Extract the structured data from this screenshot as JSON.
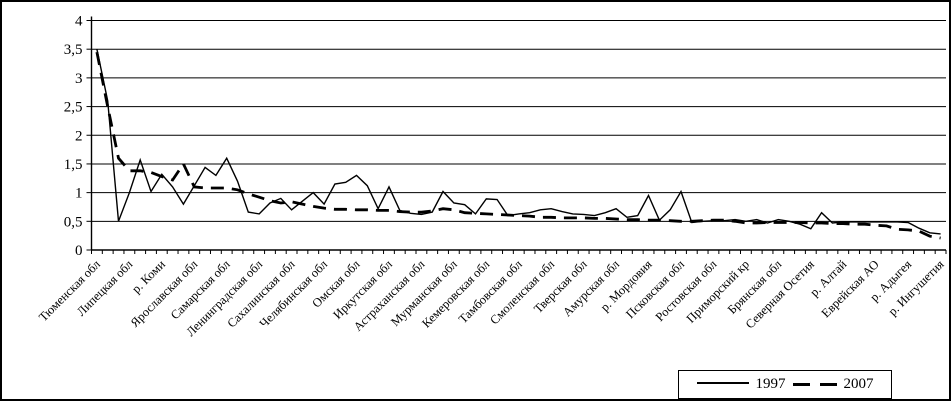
{
  "chart_data": {
    "type": "line",
    "title": "",
    "xlabel": "",
    "ylabel": "",
    "ylim": [
      0,
      4
    ],
    "ytick_values": [
      0,
      0.5,
      1,
      1.5,
      2,
      2.5,
      3,
      3.5,
      4
    ],
    "ytick_labels": [
      "0",
      "0,5",
      "1",
      "1,5",
      "2",
      "2,5",
      "3",
      "3,5",
      "4"
    ],
    "grid": "horizontal",
    "legend_position": "bottom-right",
    "line_color": "#000000",
    "n_points": 79,
    "label_every": 3,
    "categories": [
      "Тюменская обл",
      "Липецкая обл",
      "р. Коми",
      "Ярославская обл",
      "Самарская обл",
      "Ленинградская обл",
      "Сахалинская обл",
      "Челябинская обл",
      "Омская обл",
      "Иркутская обл",
      "Астраханская обл",
      "Мурманская обл",
      "Кемеровская обл",
      "Тамбовская обл",
      "Смоленская обл",
      "Тверская обл",
      "Амурская обл",
      "р. Мордовия",
      "Псковская обл",
      "Ростовская обл",
      "Приморский кр",
      "Брянская обл",
      "Северная Осетия",
      "р. Алтай",
      "Еврейская АО",
      "р. Адыгея",
      "р. Ингушетия"
    ],
    "series": [
      {
        "name": "1997",
        "style": "solid",
        "values": [
          3.5,
          2.6,
          0.5,
          1.0,
          1.57,
          1.02,
          1.32,
          1.1,
          0.8,
          1.12,
          1.44,
          1.3,
          1.6,
          1.2,
          0.66,
          0.63,
          0.82,
          0.9,
          0.7,
          0.85,
          1.0,
          0.8,
          1.15,
          1.18,
          1.3,
          1.12,
          0.72,
          1.1,
          0.69,
          0.64,
          0.62,
          0.66,
          1.02,
          0.82,
          0.79,
          0.63,
          0.89,
          0.88,
          0.6,
          0.63,
          0.65,
          0.7,
          0.72,
          0.67,
          0.63,
          0.62,
          0.6,
          0.65,
          0.72,
          0.57,
          0.6,
          0.95,
          0.52,
          0.7,
          1.02,
          0.48,
          0.5,
          0.51,
          0.51,
          0.53,
          0.5,
          0.53,
          0.47,
          0.53,
          0.5,
          0.45,
          0.37,
          0.65,
          0.47,
          0.49,
          0.49,
          0.49,
          0.49,
          0.49,
          0.49,
          0.48,
          0.38,
          0.3,
          0.28
        ]
      },
      {
        "name": "2007",
        "style": "dashed",
        "values": [
          3.45,
          2.5,
          1.6,
          1.38,
          1.38,
          1.35,
          1.28,
          1.22,
          1.5,
          1.1,
          1.08,
          1.08,
          1.08,
          1.05,
          0.98,
          0.92,
          0.86,
          0.82,
          0.84,
          0.8,
          0.76,
          0.73,
          0.71,
          0.71,
          0.7,
          0.7,
          0.69,
          0.69,
          0.67,
          0.66,
          0.66,
          0.68,
          0.72,
          0.7,
          0.65,
          0.64,
          0.63,
          0.62,
          0.61,
          0.6,
          0.59,
          0.57,
          0.57,
          0.56,
          0.56,
          0.56,
          0.55,
          0.55,
          0.54,
          0.53,
          0.53,
          0.52,
          0.52,
          0.51,
          0.5,
          0.5,
          0.51,
          0.52,
          0.52,
          0.5,
          0.47,
          0.47,
          0.48,
          0.48,
          0.48,
          0.48,
          0.47,
          0.47,
          0.46,
          0.46,
          0.45,
          0.45,
          0.43,
          0.42,
          0.36,
          0.35,
          0.33,
          0.24,
          0.21
        ]
      }
    ]
  },
  "legend": {
    "solid_label": "1997",
    "dashed_label": "2007"
  }
}
